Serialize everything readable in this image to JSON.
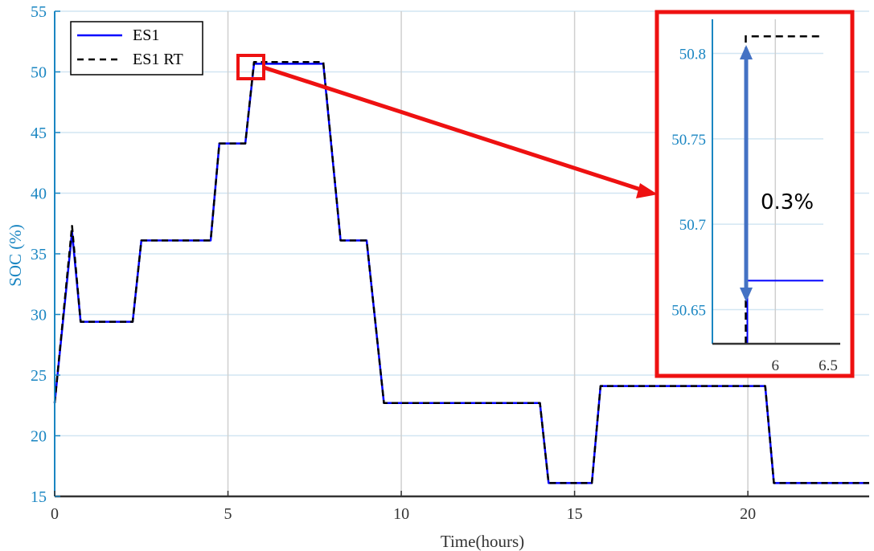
{
  "chart_data": {
    "type": "line",
    "title": "",
    "xlabel": "Time(hours)",
    "ylabel": "SOC (%)",
    "xlim": [
      0,
      23.5
    ],
    "ylim": [
      15,
      55
    ],
    "xticks": [
      0,
      5,
      10,
      15,
      20
    ],
    "yticks": [
      15,
      20,
      25,
      30,
      35,
      40,
      45,
      50,
      55
    ],
    "grid": true,
    "legend_position": "top-left",
    "series": [
      {
        "name": "ES1",
        "color": "#0000ff",
        "style": "solid",
        "x": [
          0,
          0.5,
          0.75,
          2.25,
          2.5,
          4.5,
          4.75,
          5.5,
          5.75,
          7.75,
          8.25,
          9.0,
          9.5,
          14.0,
          14.25,
          15.5,
          15.75,
          20.5,
          20.75,
          23.5
        ],
        "y": [
          22.7,
          36.8,
          29.4,
          29.4,
          36.1,
          36.1,
          44.1,
          44.1,
          50.67,
          50.67,
          36.1,
          36.1,
          22.7,
          22.7,
          16.1,
          16.1,
          24.1,
          24.1,
          16.1,
          16.1
        ]
      },
      {
        "name": "ES1 RT",
        "color": "#000000",
        "style": "dashed",
        "x": [
          0,
          0.5,
          0.75,
          2.25,
          2.5,
          4.5,
          4.75,
          5.5,
          5.75,
          7.75,
          8.25,
          9.0,
          9.5,
          14.0,
          14.25,
          15.5,
          15.75,
          20.5,
          20.75,
          23.5
        ],
        "y": [
          22.7,
          37.3,
          29.4,
          29.4,
          36.1,
          36.1,
          44.1,
          44.1,
          50.81,
          50.81,
          36.1,
          36.1,
          22.7,
          22.7,
          16.1,
          16.1,
          24.1,
          24.1,
          16.1,
          16.1
        ]
      }
    ],
    "inset": {
      "xlim": [
        5.55,
        6.55
      ],
      "ylim": [
        50.63,
        50.82
      ],
      "xticks": [
        6,
        6.5
      ],
      "yticks": [
        50.65,
        50.7,
        50.75,
        50.8
      ],
      "es1_value": 50.667,
      "es1_rt_value": 50.81,
      "step_x": 5.8,
      "annotation": "0.3%"
    }
  }
}
